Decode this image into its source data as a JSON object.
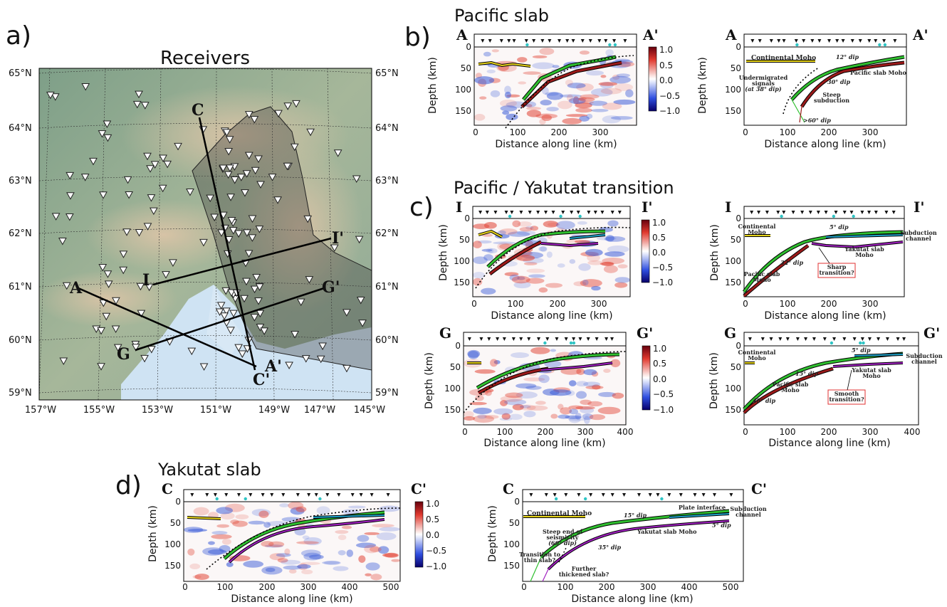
{
  "panel_letters": {
    "a": "a)",
    "b": "b)",
    "c": "c)",
    "d": "d)"
  },
  "map": {
    "title": "Receivers",
    "lat_labels": [
      "65°N",
      "64°N",
      "63°N",
      "62°N",
      "61°N",
      "60°N",
      "59°N"
    ],
    "lon_labels": [
      "157°W",
      "155°W",
      "153°W",
      "151°W",
      "149°W",
      "147°W",
      "145°W"
    ],
    "profiles": {
      "A": "A",
      "A_end": "A'",
      "C": "C",
      "C_end": "C'",
      "I": "I",
      "I_end": "I'",
      "G": "G",
      "G_end": "G'"
    },
    "colors": {
      "land": "#8aa88c",
      "mountains": "#c9b59a",
      "water": "#cfe3f3",
      "shaded_region": "#3a3a3a"
    }
  },
  "panels": {
    "b": {
      "title": "Pacific slab",
      "start": "A",
      "end": "A'",
      "xlabel": "Distance along line (km)",
      "ylabel": "Depth (km)",
      "xticks_left": [
        "0",
        "100",
        "200",
        "300"
      ],
      "xticks_right": [
        "0",
        "100",
        "200",
        "300"
      ],
      "yticks": [
        "0",
        "50",
        "100",
        "150"
      ],
      "colorbar_ticks": [
        "1.0",
        "0.5",
        "0.0",
        "−0.5",
        "−1.0"
      ],
      "annotations": {
        "continental_moho": "Continental Moho",
        "dip12": "12° dip",
        "slab_moho": "Pacific slab Moho",
        "undermigrated1": "Undermigrated",
        "undermigrated2": "signals",
        "undermigrated3": "(at 38° dip)",
        "dip30": "30° dip",
        "steep1": "Steep",
        "steep2": "subduction",
        "dip60": ">60° dip"
      }
    },
    "c_top": {
      "title": "Pacific / Yakutat transition",
      "start": "I",
      "end": "I'",
      "xlabel": "Distance along line (km)",
      "ylabel": "Depth (km)",
      "xticks_left": [
        "0",
        "100",
        "200",
        "300"
      ],
      "xticks_right": [
        "0",
        "100",
        "200",
        "300"
      ],
      "yticks": [
        "0",
        "50",
        "100",
        "150"
      ],
      "colorbar_ticks": [
        "1.0",
        "0.5",
        "0.0",
        "−0.5",
        "−1.0"
      ],
      "annotations": {
        "continental_moho1": "Continental",
        "continental_moho2": "Moho",
        "dip5": "5° dip",
        "subduction_channel1": "Subduction",
        "subduction_channel2": "channel",
        "yakutat1": "Yakutat slab",
        "yakutat2": "Moho",
        "dip32": "32° dip",
        "sharp1": "Sharp",
        "sharp2": "transition?",
        "pacific1": "Pacific slab",
        "pacific2": "Moho"
      }
    },
    "c_bottom": {
      "start": "G",
      "end": "G'",
      "xlabel": "Distance along line (km)",
      "ylabel": "Depth (km)",
      "xticks_left": [
        "0",
        "100",
        "200",
        "300",
        "400"
      ],
      "xticks_right": [
        "0",
        "100",
        "200",
        "300",
        "400"
      ],
      "yticks": [
        "0",
        "50",
        "100",
        "150"
      ],
      "colorbar_ticks": [
        "1.0",
        "0.5",
        "0.0",
        "−0.5",
        "−1.0"
      ],
      "annotations": {
        "continental_moho1": "Continental",
        "continental_moho2": "Moho",
        "dip5": "5° dip",
        "subduction_channel1": "Subduction",
        "subduction_channel2": "channel",
        "dip15": "15° dip",
        "yakutat1": "Yakutat slab",
        "yakutat2": "Moho",
        "pacific1": "Pacific slab",
        "pacific2": "Moho",
        "smooth1": "Smooth",
        "smooth2": "transition?",
        "dip48": "48° dip"
      }
    },
    "d": {
      "title": "Yakutat slab",
      "start": "C",
      "end": "C'",
      "xlabel": "Distance along line (km)",
      "ylabel": "Depth (km)",
      "xticks_left": [
        "0",
        "100",
        "200",
        "300",
        "400",
        "500"
      ],
      "xticks_right": [
        "0",
        "100",
        "200",
        "300",
        "400",
        "500"
      ],
      "yticks": [
        "0",
        "50",
        "100",
        "150"
      ],
      "colorbar_ticks": [
        "1.0",
        "0.5",
        "0.0",
        "−0.5",
        "−1.0"
      ],
      "annotations": {
        "continental_moho": "Continental Moho",
        "plate_interface": "Plate interface",
        "subduction_channel1": "Subduction",
        "subduction_channel2": "channel",
        "dip15": "15° dip",
        "yakutat": "Yakutat slab Moho",
        "dip5": "5° dip",
        "steep1": "Steep end of",
        "steep2": "seismicity",
        "steep3": "(60° dip)",
        "dip35": "35° dip",
        "thin1": "Transition to",
        "thin2": "thin slab?",
        "thick1": "Further",
        "thick2": "thickened slab?"
      }
    }
  }
}
